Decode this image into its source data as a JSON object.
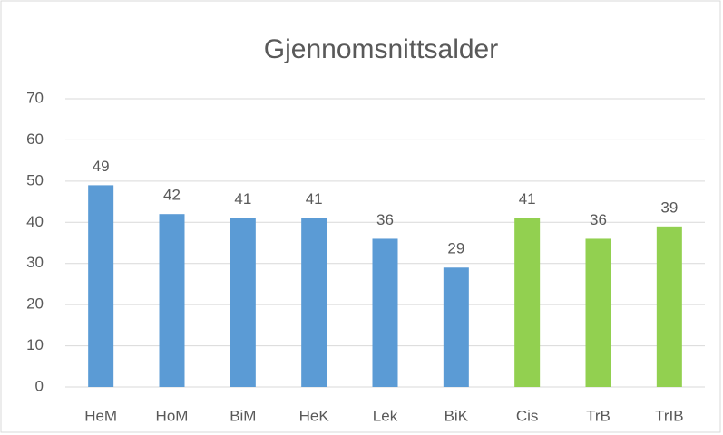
{
  "chart_data": {
    "type": "bar",
    "title": "Gjennomsnittsalder",
    "categories": [
      "HeM",
      "HoM",
      "BiM",
      "HeK",
      "Lek",
      "BiK",
      "Cis",
      "TrB",
      "TrIB"
    ],
    "values": [
      49,
      42,
      41,
      41,
      36,
      29,
      41,
      36,
      39
    ],
    "colors": [
      "#5b9bd5",
      "#5b9bd5",
      "#5b9bd5",
      "#5b9bd5",
      "#5b9bd5",
      "#5b9bd5",
      "#92d050",
      "#92d050",
      "#92d050"
    ],
    "ylim": [
      0,
      70
    ],
    "yticks": [
      0,
      10,
      20,
      30,
      40,
      50,
      60,
      70
    ],
    "grid": true
  }
}
